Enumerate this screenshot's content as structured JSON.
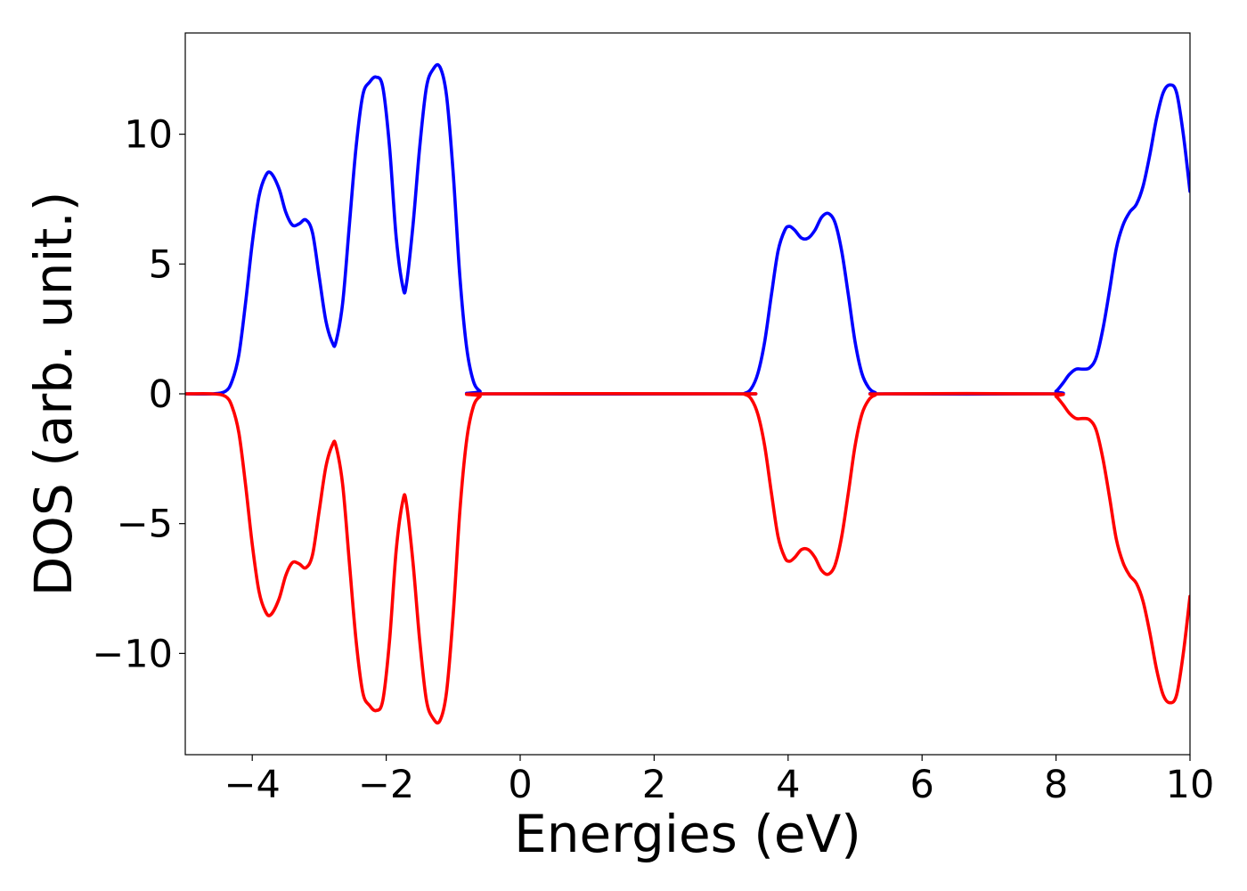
{
  "chart_data": {
    "type": "line",
    "title": "",
    "xlabel": "Energies (eV)",
    "ylabel": "DOS (arb. unit.)",
    "xlim": [
      -5,
      10
    ],
    "ylim": [
      -13.9,
      13.9
    ],
    "grid": false,
    "legend": "none",
    "xticks": [
      {
        "value": -4,
        "label": "−4"
      },
      {
        "value": -2,
        "label": "−2"
      },
      {
        "value": 0,
        "label": "0"
      },
      {
        "value": 2,
        "label": "2"
      },
      {
        "value": 4,
        "label": "4"
      },
      {
        "value": 6,
        "label": "6"
      },
      {
        "value": 8,
        "label": "8"
      },
      {
        "value": 10,
        "label": "10"
      }
    ],
    "yticks": [
      {
        "value": 10,
        "label": "10"
      },
      {
        "value": 5,
        "label": "5"
      },
      {
        "value": 0,
        "label": "0"
      },
      {
        "value": -5,
        "label": "−5"
      },
      {
        "value": -10,
        "label": "−10"
      }
    ],
    "series": [
      {
        "color": "#0000ff",
        "points": [
          [
            -5.0,
            0.0
          ],
          [
            -4.6,
            0.0
          ],
          [
            -4.4,
            0.1
          ],
          [
            -4.3,
            0.5
          ],
          [
            -4.2,
            1.5
          ],
          [
            -4.1,
            3.5
          ],
          [
            -4.0,
            5.8
          ],
          [
            -3.9,
            7.6
          ],
          [
            -3.8,
            8.4
          ],
          [
            -3.72,
            8.5
          ],
          [
            -3.6,
            7.9
          ],
          [
            -3.5,
            7.0
          ],
          [
            -3.4,
            6.5
          ],
          [
            -3.3,
            6.55
          ],
          [
            -3.2,
            6.7
          ],
          [
            -3.1,
            6.2
          ],
          [
            -3.0,
            4.5
          ],
          [
            -2.9,
            2.8
          ],
          [
            -2.8,
            1.95
          ],
          [
            -2.75,
            2.0
          ],
          [
            -2.65,
            3.5
          ],
          [
            -2.55,
            6.5
          ],
          [
            -2.45,
            9.5
          ],
          [
            -2.35,
            11.5
          ],
          [
            -2.25,
            12.0
          ],
          [
            -2.15,
            12.2
          ],
          [
            -2.05,
            11.8
          ],
          [
            -1.95,
            9.5
          ],
          [
            -1.85,
            6.0
          ],
          [
            -1.75,
            4.1
          ],
          [
            -1.7,
            4.2
          ],
          [
            -1.6,
            6.5
          ],
          [
            -1.5,
            9.5
          ],
          [
            -1.4,
            11.8
          ],
          [
            -1.3,
            12.5
          ],
          [
            -1.2,
            12.6
          ],
          [
            -1.1,
            11.5
          ],
          [
            -1.0,
            8.5
          ],
          [
            -0.9,
            4.5
          ],
          [
            -0.8,
            1.8
          ],
          [
            -0.7,
            0.5
          ],
          [
            -0.6,
            0.1
          ],
          [
            -0.5,
            0.0
          ],
          [
            3.2,
            0.0
          ],
          [
            3.35,
            0.02
          ],
          [
            3.45,
            0.2
          ],
          [
            3.55,
            0.8
          ],
          [
            3.65,
            2.0
          ],
          [
            3.75,
            3.8
          ],
          [
            3.85,
            5.5
          ],
          [
            3.95,
            6.3
          ],
          [
            4.02,
            6.45
          ],
          [
            4.1,
            6.3
          ],
          [
            4.2,
            6.0
          ],
          [
            4.3,
            6.0
          ],
          [
            4.4,
            6.3
          ],
          [
            4.5,
            6.8
          ],
          [
            4.6,
            6.95
          ],
          [
            4.7,
            6.6
          ],
          [
            4.8,
            5.5
          ],
          [
            4.9,
            3.8
          ],
          [
            5.0,
            2.0
          ],
          [
            5.1,
            0.8
          ],
          [
            5.2,
            0.25
          ],
          [
            5.3,
            0.05
          ],
          [
            5.45,
            0.0
          ],
          [
            7.9,
            0.0
          ],
          [
            8.0,
            0.1
          ],
          [
            8.1,
            0.4
          ],
          [
            8.2,
            0.75
          ],
          [
            8.3,
            0.95
          ],
          [
            8.4,
            0.95
          ],
          [
            8.5,
            1.0
          ],
          [
            8.6,
            1.4
          ],
          [
            8.7,
            2.5
          ],
          [
            8.8,
            4.0
          ],
          [
            8.9,
            5.6
          ],
          [
            9.0,
            6.5
          ],
          [
            9.1,
            7.0
          ],
          [
            9.2,
            7.3
          ],
          [
            9.3,
            8.0
          ],
          [
            9.4,
            9.2
          ],
          [
            9.5,
            10.6
          ],
          [
            9.6,
            11.6
          ],
          [
            9.7,
            11.9
          ],
          [
            9.8,
            11.6
          ],
          [
            9.9,
            10.0
          ],
          [
            10.0,
            7.8
          ]
        ]
      },
      {
        "color": "#ff0000",
        "points": [
          [
            -5.0,
            0.0
          ],
          [
            -4.6,
            0.0
          ],
          [
            -4.4,
            -0.1
          ],
          [
            -4.3,
            -0.5
          ],
          [
            -4.2,
            -1.5
          ],
          [
            -4.1,
            -3.5
          ],
          [
            -4.0,
            -5.8
          ],
          [
            -3.9,
            -7.6
          ],
          [
            -3.8,
            -8.4
          ],
          [
            -3.72,
            -8.5
          ],
          [
            -3.6,
            -7.9
          ],
          [
            -3.5,
            -7.0
          ],
          [
            -3.4,
            -6.5
          ],
          [
            -3.3,
            -6.55
          ],
          [
            -3.2,
            -6.7
          ],
          [
            -3.1,
            -6.2
          ],
          [
            -3.0,
            -4.5
          ],
          [
            -2.9,
            -2.8
          ],
          [
            -2.8,
            -1.95
          ],
          [
            -2.75,
            -2.0
          ],
          [
            -2.65,
            -3.5
          ],
          [
            -2.55,
            -6.5
          ],
          [
            -2.45,
            -9.5
          ],
          [
            -2.35,
            -11.5
          ],
          [
            -2.25,
            -12.0
          ],
          [
            -2.15,
            -12.2
          ],
          [
            -2.05,
            -11.8
          ],
          [
            -1.95,
            -9.5
          ],
          [
            -1.85,
            -6.0
          ],
          [
            -1.75,
            -4.1
          ],
          [
            -1.7,
            -4.2
          ],
          [
            -1.6,
            -6.5
          ],
          [
            -1.5,
            -9.5
          ],
          [
            -1.4,
            -11.8
          ],
          [
            -1.3,
            -12.5
          ],
          [
            -1.2,
            -12.6
          ],
          [
            -1.1,
            -11.5
          ],
          [
            -1.0,
            -8.5
          ],
          [
            -0.9,
            -4.5
          ],
          [
            -0.8,
            -1.8
          ],
          [
            -0.7,
            -0.5
          ],
          [
            -0.6,
            -0.1
          ],
          [
            -0.5,
            0.0
          ],
          [
            3.2,
            0.0
          ],
          [
            3.35,
            -0.02
          ],
          [
            3.45,
            -0.2
          ],
          [
            3.55,
            -0.8
          ],
          [
            3.65,
            -2.0
          ],
          [
            3.75,
            -3.8
          ],
          [
            3.85,
            -5.5
          ],
          [
            3.95,
            -6.3
          ],
          [
            4.02,
            -6.45
          ],
          [
            4.1,
            -6.3
          ],
          [
            4.2,
            -6.0
          ],
          [
            4.3,
            -6.0
          ],
          [
            4.4,
            -6.3
          ],
          [
            4.5,
            -6.8
          ],
          [
            4.6,
            -6.95
          ],
          [
            4.7,
            -6.6
          ],
          [
            4.8,
            -5.5
          ],
          [
            4.9,
            -3.8
          ],
          [
            5.0,
            -2.0
          ],
          [
            5.1,
            -0.8
          ],
          [
            5.2,
            -0.25
          ],
          [
            5.3,
            -0.05
          ],
          [
            5.45,
            0.0
          ],
          [
            7.9,
            0.0
          ],
          [
            8.0,
            -0.1
          ],
          [
            8.1,
            -0.4
          ],
          [
            8.2,
            -0.75
          ],
          [
            8.3,
            -0.95
          ],
          [
            8.4,
            -0.95
          ],
          [
            8.5,
            -1.0
          ],
          [
            8.6,
            -1.4
          ],
          [
            8.7,
            -2.5
          ],
          [
            8.8,
            -4.0
          ],
          [
            8.9,
            -5.6
          ],
          [
            9.0,
            -6.5
          ],
          [
            9.1,
            -7.0
          ],
          [
            9.2,
            -7.3
          ],
          [
            9.3,
            -8.0
          ],
          [
            9.4,
            -9.2
          ],
          [
            9.5,
            -10.6
          ],
          [
            9.6,
            -11.6
          ],
          [
            9.7,
            -11.9
          ],
          [
            9.8,
            -11.6
          ],
          [
            9.9,
            -10.0
          ],
          [
            10.0,
            -7.8
          ]
        ]
      }
    ]
  }
}
